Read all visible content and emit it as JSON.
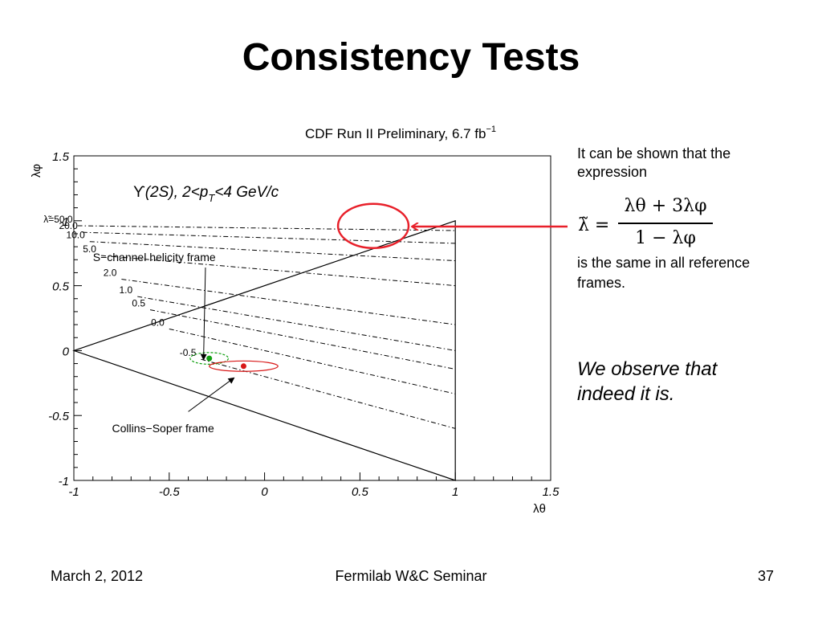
{
  "slide": {
    "title": "Consistency Tests",
    "side_text_1": "It can be shown that the expression",
    "formula": {
      "lhs": "λ̃ =",
      "numerator": "λθ + 3λφ",
      "denominator": "1 − λφ"
    },
    "side_text_2": "is the same in all reference frames.",
    "side_text_3": "We observe that indeed it is.",
    "footer_left": "March 2, 2012",
    "footer_center": "Fermilab W&C Seminar",
    "footer_right": "37"
  },
  "chart_data": {
    "type": "scatter",
    "title": "CDF Run II Preliminary, 6.7 fb⁻¹",
    "title_main": "CDF Run II Preliminary, 6.7 fb",
    "title_sup": "−1",
    "subtitle": "ϒ(2S), 2<pT<4 GeV/c",
    "subtitle_parts": {
      "pre": "ϒ",
      "main": "(2S), 2<p",
      "sub": "T",
      "post": "<4 GeV/c"
    },
    "xlabel": "λθ",
    "ylabel": "λφ",
    "xlim": [
      -1,
      1.5
    ],
    "ylim": [
      -1,
      1.5
    ],
    "xticks": [
      {
        "v": -1,
        "label": "-1"
      },
      {
        "v": -0.5,
        "label": "-0.5"
      },
      {
        "v": 0,
        "label": "0"
      },
      {
        "v": 0.5,
        "label": "0.5"
      },
      {
        "v": 1,
        "label": "1"
      },
      {
        "v": 1.5,
        "label": "1.5"
      }
    ],
    "yticks": [
      {
        "v": -1,
        "label": "-1"
      },
      {
        "v": -0.5,
        "label": "-0.5"
      },
      {
        "v": 0,
        "label": "0"
      },
      {
        "v": 0.5,
        "label": "0.5"
      },
      {
        "v": 1,
        "label": "1"
      },
      {
        "v": 1.5,
        "label": "1.5"
      }
    ],
    "grid": false,
    "physical_region": [
      [
        -1,
        0
      ],
      [
        1,
        1
      ],
      [
        1,
        -1
      ]
    ],
    "contours": [
      {
        "lambda": -0.5,
        "label": "-0.5"
      },
      {
        "lambda": 0.0,
        "label": "0.0"
      },
      {
        "lambda": 0.5,
        "label": "0.5"
      },
      {
        "lambda": 1.0,
        "label": "1.0"
      },
      {
        "lambda": 2.0,
        "label": "2.0"
      },
      {
        "lambda": 5.0,
        "label": "5.0"
      },
      {
        "lambda": 10.0,
        "label": "10.0"
      },
      {
        "lambda": 20.0,
        "label": "20.0"
      },
      {
        "lambda": 50.0,
        "label": "λ̃=50.0"
      }
    ],
    "points": [
      {
        "name": "S-channel helicity frame",
        "x": -0.29,
        "y": -0.06,
        "color": "#12a012",
        "ellipse_rx": 0.1,
        "ellipse_ry": 0.045
      },
      {
        "name": "Collins-Soper frame",
        "x": -0.11,
        "y": -0.12,
        "color": "#d81818",
        "ellipse_rx": 0.18,
        "ellipse_ry": 0.04
      }
    ],
    "annotations": [
      {
        "text": "S−channel helicity frame",
        "tx": -0.9,
        "ty": 0.69,
        "ax": -0.31,
        "ay": 0.64,
        "bx": -0.32,
        "by": -0.07
      },
      {
        "text": "Collins−Soper frame",
        "tx": -0.8,
        "ty": -0.63,
        "ax": -0.4,
        "ay": -0.47,
        "bx": -0.16,
        "by": -0.21
      }
    ],
    "highlight": {
      "x": 0.57,
      "y": 0.96,
      "rx": 0.185,
      "ry": 0.17,
      "color": "#e8202a"
    },
    "arrow_color": "#e8202a"
  }
}
